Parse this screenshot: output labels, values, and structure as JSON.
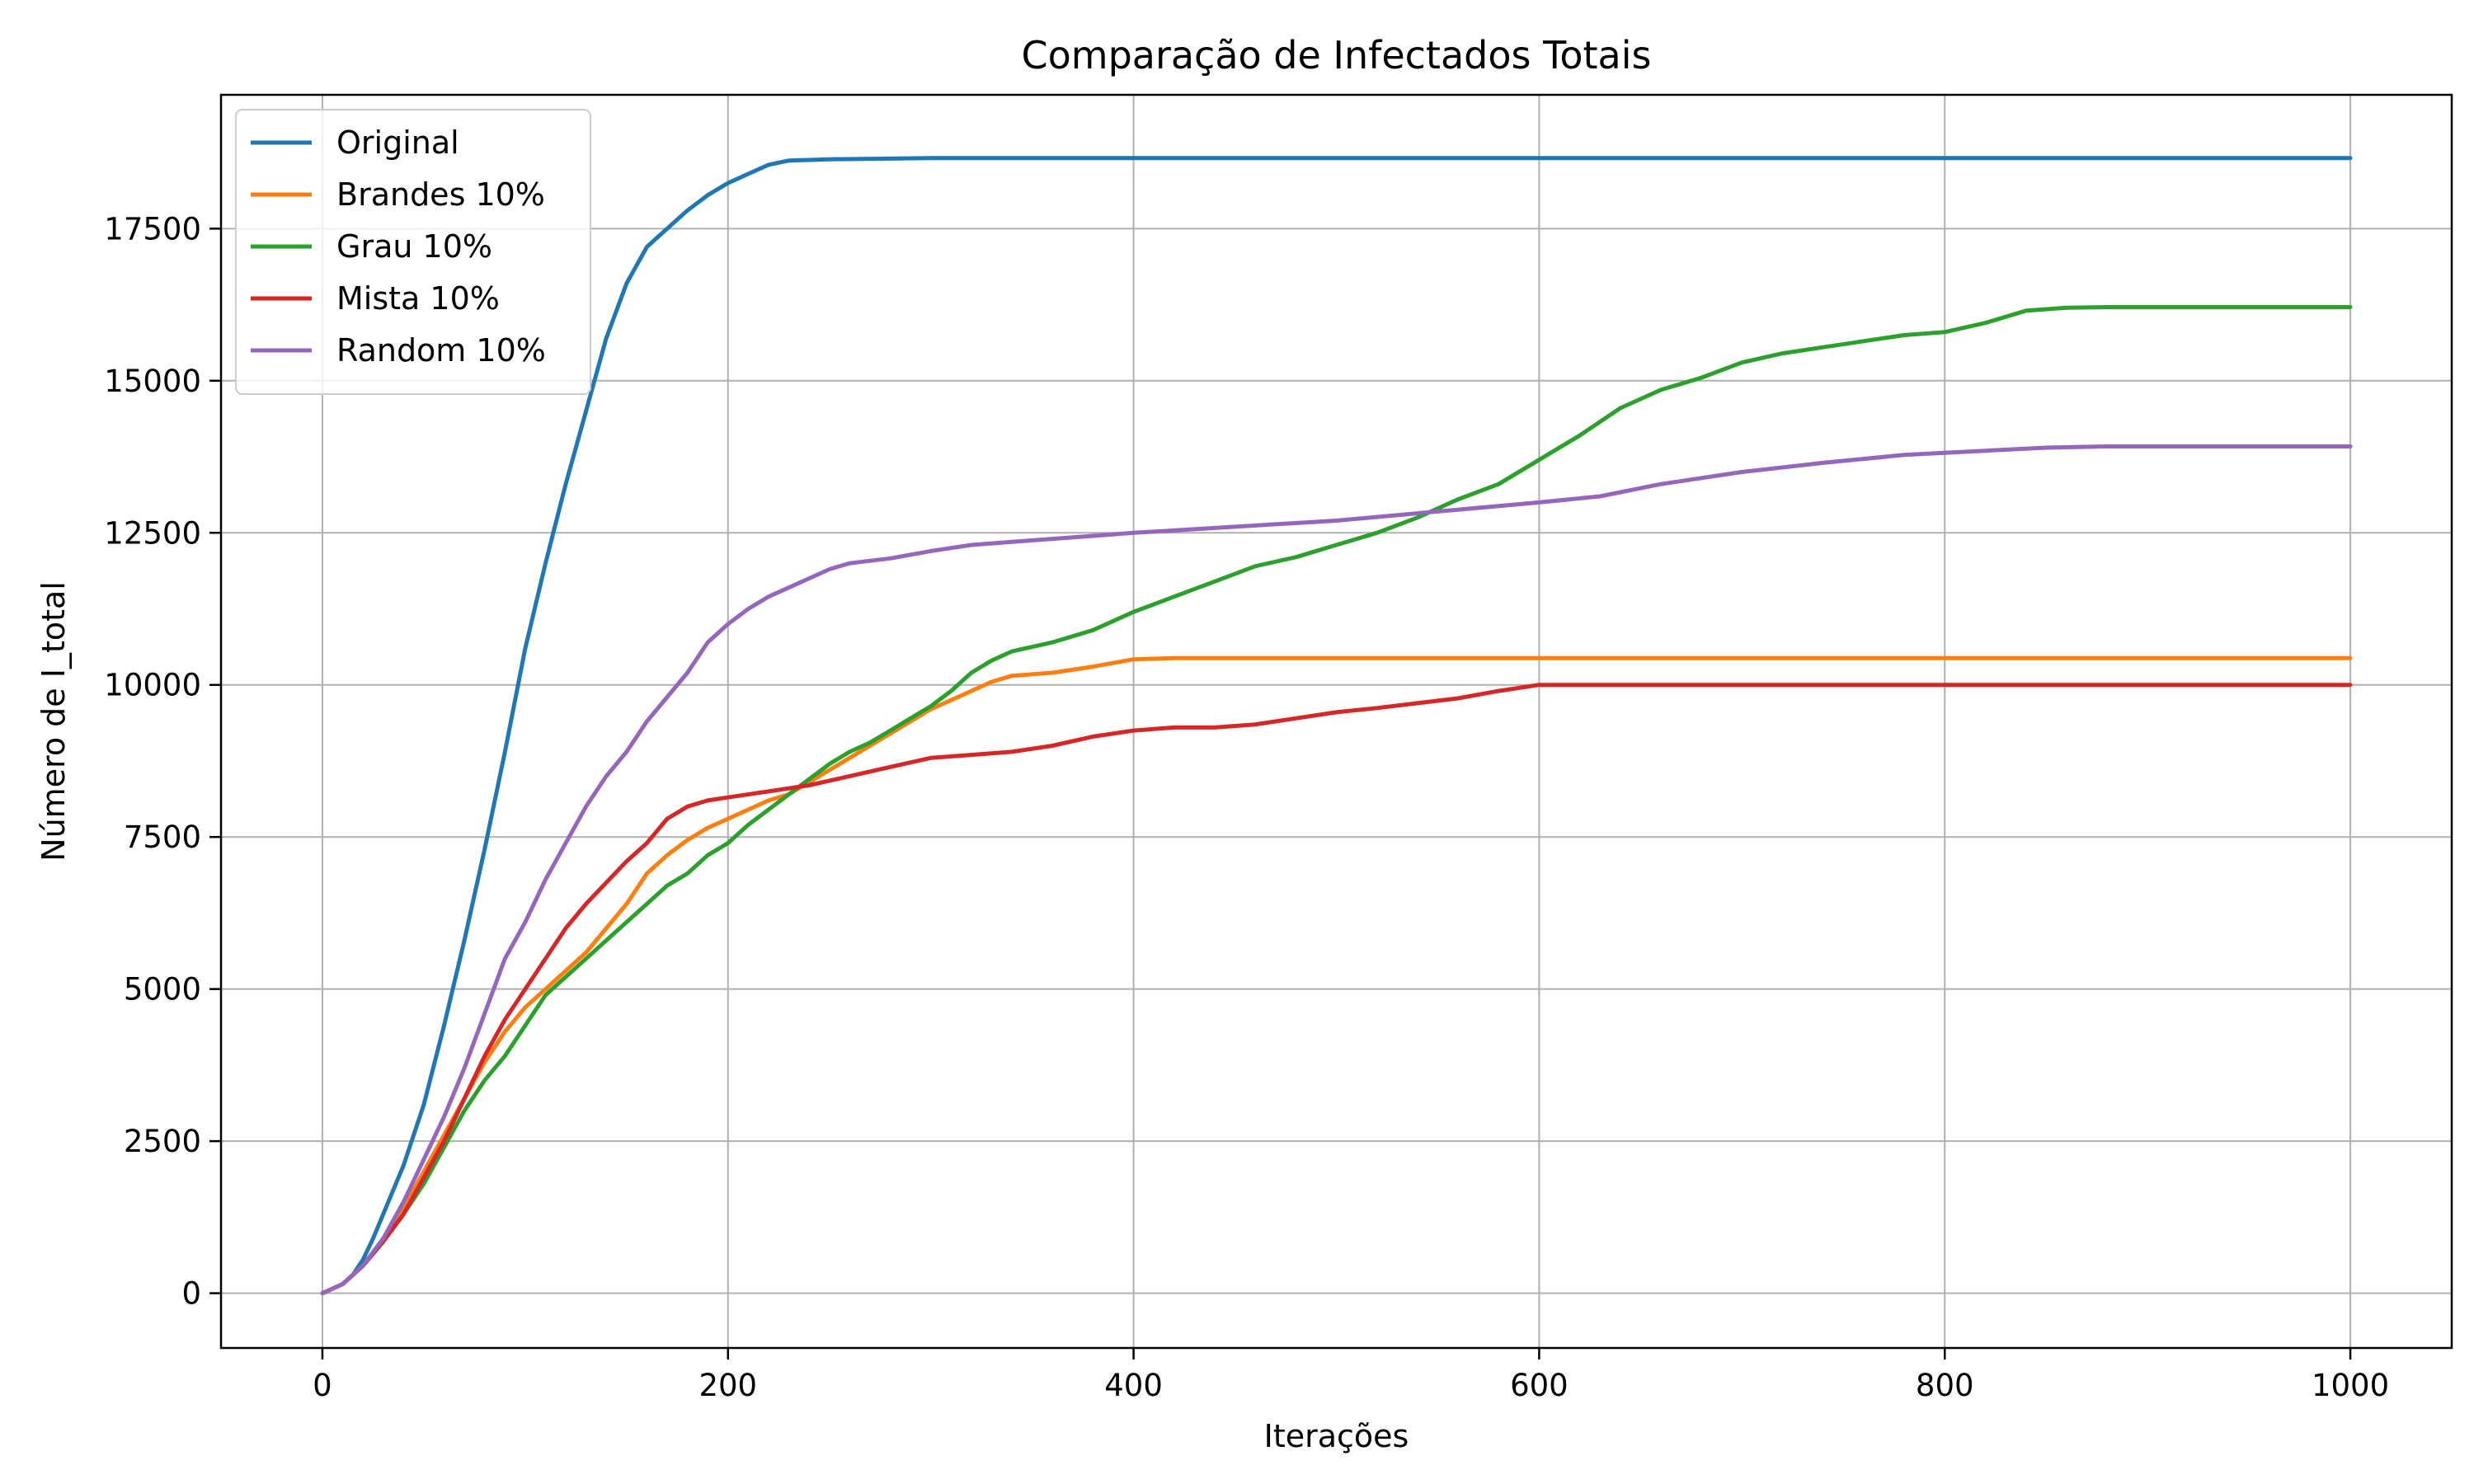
{
  "chart_data": {
    "type": "line",
    "title": "Comparação de Infectados Totais",
    "xlabel": "Iterações",
    "ylabel": "Número de I_total",
    "xlim": [
      -50,
      1050
    ],
    "ylim": [
      -900,
      19700
    ],
    "xticks": [
      0,
      200,
      400,
      600,
      800,
      1000
    ],
    "yticks": [
      0,
      2500,
      5000,
      7500,
      10000,
      12500,
      15000,
      17500
    ],
    "grid": true,
    "legend_position": "top-left",
    "series": [
      {
        "name": "Original",
        "color": "#1f77b4",
        "points": [
          [
            0,
            0
          ],
          [
            10,
            150
          ],
          [
            15,
            300
          ],
          [
            20,
            550
          ],
          [
            25,
            900
          ],
          [
            30,
            1300
          ],
          [
            40,
            2100
          ],
          [
            50,
            3100
          ],
          [
            60,
            4400
          ],
          [
            70,
            5800
          ],
          [
            80,
            7300
          ],
          [
            90,
            8900
          ],
          [
            100,
            10600
          ],
          [
            110,
            12000
          ],
          [
            120,
            13300
          ],
          [
            130,
            14500
          ],
          [
            140,
            15700
          ],
          [
            150,
            16600
          ],
          [
            160,
            17200
          ],
          [
            170,
            17500
          ],
          [
            180,
            17800
          ],
          [
            190,
            18050
          ],
          [
            200,
            18250
          ],
          [
            210,
            18400
          ],
          [
            220,
            18550
          ],
          [
            230,
            18620
          ],
          [
            250,
            18640
          ],
          [
            300,
            18660
          ],
          [
            1000,
            18660
          ]
        ]
      },
      {
        "name": "Brandes 10%",
        "color": "#ff7f0e",
        "points": [
          [
            0,
            0
          ],
          [
            10,
            150
          ],
          [
            20,
            450
          ],
          [
            30,
            900
          ],
          [
            40,
            1400
          ],
          [
            50,
            2000
          ],
          [
            60,
            2600
          ],
          [
            70,
            3200
          ],
          [
            80,
            3800
          ],
          [
            90,
            4300
          ],
          [
            100,
            4700
          ],
          [
            110,
            5000
          ],
          [
            120,
            5300
          ],
          [
            130,
            5600
          ],
          [
            140,
            6000
          ],
          [
            150,
            6400
          ],
          [
            160,
            6900
          ],
          [
            170,
            7200
          ],
          [
            180,
            7450
          ],
          [
            190,
            7650
          ],
          [
            200,
            7800
          ],
          [
            210,
            7950
          ],
          [
            220,
            8100
          ],
          [
            230,
            8200
          ],
          [
            240,
            8400
          ],
          [
            250,
            8600
          ],
          [
            260,
            8800
          ],
          [
            270,
            9000
          ],
          [
            280,
            9200
          ],
          [
            290,
            9400
          ],
          [
            300,
            9600
          ],
          [
            310,
            9750
          ],
          [
            320,
            9900
          ],
          [
            330,
            10050
          ],
          [
            340,
            10150
          ],
          [
            360,
            10200
          ],
          [
            380,
            10300
          ],
          [
            400,
            10420
          ],
          [
            420,
            10440
          ],
          [
            1000,
            10440
          ]
        ]
      },
      {
        "name": "Grau 10%",
        "color": "#2ca02c",
        "points": [
          [
            0,
            0
          ],
          [
            10,
            150
          ],
          [
            20,
            450
          ],
          [
            30,
            850
          ],
          [
            40,
            1300
          ],
          [
            50,
            1800
          ],
          [
            60,
            2400
          ],
          [
            70,
            3000
          ],
          [
            80,
            3500
          ],
          [
            90,
            3900
          ],
          [
            100,
            4400
          ],
          [
            110,
            4900
          ],
          [
            120,
            5200
          ],
          [
            130,
            5500
          ],
          [
            140,
            5800
          ],
          [
            150,
            6100
          ],
          [
            160,
            6400
          ],
          [
            170,
            6700
          ],
          [
            180,
            6900
          ],
          [
            190,
            7200
          ],
          [
            200,
            7400
          ],
          [
            210,
            7700
          ],
          [
            220,
            7950
          ],
          [
            230,
            8200
          ],
          [
            240,
            8450
          ],
          [
            250,
            8700
          ],
          [
            260,
            8900
          ],
          [
            270,
            9050
          ],
          [
            280,
            9250
          ],
          [
            290,
            9450
          ],
          [
            300,
            9650
          ],
          [
            310,
            9900
          ],
          [
            320,
            10200
          ],
          [
            330,
            10400
          ],
          [
            340,
            10550
          ],
          [
            360,
            10700
          ],
          [
            380,
            10900
          ],
          [
            400,
            11200
          ],
          [
            420,
            11450
          ],
          [
            440,
            11700
          ],
          [
            460,
            11950
          ],
          [
            480,
            12100
          ],
          [
            500,
            12300
          ],
          [
            520,
            12500
          ],
          [
            540,
            12750
          ],
          [
            560,
            13050
          ],
          [
            580,
            13300
          ],
          [
            600,
            13700
          ],
          [
            620,
            14100
          ],
          [
            640,
            14550
          ],
          [
            660,
            14850
          ],
          [
            680,
            15050
          ],
          [
            700,
            15300
          ],
          [
            720,
            15450
          ],
          [
            740,
            15550
          ],
          [
            760,
            15650
          ],
          [
            780,
            15750
          ],
          [
            800,
            15800
          ],
          [
            820,
            15950
          ],
          [
            840,
            16150
          ],
          [
            860,
            16200
          ],
          [
            880,
            16210
          ],
          [
            1000,
            16210
          ]
        ]
      },
      {
        "name": "Mista 10%",
        "color": "#d62728",
        "points": [
          [
            0,
            0
          ],
          [
            10,
            150
          ],
          [
            20,
            450
          ],
          [
            30,
            850
          ],
          [
            40,
            1300
          ],
          [
            50,
            1900
          ],
          [
            60,
            2500
          ],
          [
            70,
            3200
          ],
          [
            80,
            3900
          ],
          [
            90,
            4500
          ],
          [
            100,
            5000
          ],
          [
            110,
            5500
          ],
          [
            120,
            6000
          ],
          [
            130,
            6400
          ],
          [
            140,
            6750
          ],
          [
            150,
            7100
          ],
          [
            160,
            7400
          ],
          [
            170,
            7800
          ],
          [
            180,
            8000
          ],
          [
            190,
            8100
          ],
          [
            200,
            8150
          ],
          [
            220,
            8250
          ],
          [
            240,
            8350
          ],
          [
            260,
            8500
          ],
          [
            280,
            8650
          ],
          [
            300,
            8800
          ],
          [
            320,
            8850
          ],
          [
            340,
            8900
          ],
          [
            360,
            9000
          ],
          [
            380,
            9150
          ],
          [
            400,
            9250
          ],
          [
            420,
            9300
          ],
          [
            440,
            9300
          ],
          [
            460,
            9350
          ],
          [
            480,
            9450
          ],
          [
            500,
            9550
          ],
          [
            520,
            9620
          ],
          [
            540,
            9700
          ],
          [
            560,
            9780
          ],
          [
            580,
            9900
          ],
          [
            600,
            10000
          ],
          [
            620,
            10000
          ],
          [
            1000,
            10000
          ]
        ]
      },
      {
        "name": "Random 10%",
        "color": "#9467bd",
        "points": [
          [
            0,
            0
          ],
          [
            10,
            150
          ],
          [
            20,
            450
          ],
          [
            30,
            900
          ],
          [
            40,
            1500
          ],
          [
            50,
            2200
          ],
          [
            60,
            2900
          ],
          [
            70,
            3700
          ],
          [
            80,
            4600
          ],
          [
            90,
            5500
          ],
          [
            100,
            6100
          ],
          [
            110,
            6800
          ],
          [
            120,
            7400
          ],
          [
            130,
            8000
          ],
          [
            140,
            8500
          ],
          [
            150,
            8900
          ],
          [
            160,
            9400
          ],
          [
            170,
            9800
          ],
          [
            180,
            10200
          ],
          [
            190,
            10700
          ],
          [
            200,
            11000
          ],
          [
            210,
            11250
          ],
          [
            220,
            11450
          ],
          [
            230,
            11600
          ],
          [
            240,
            11750
          ],
          [
            250,
            11900
          ],
          [
            260,
            12000
          ],
          [
            280,
            12080
          ],
          [
            300,
            12200
          ],
          [
            320,
            12300
          ],
          [
            340,
            12350
          ],
          [
            360,
            12400
          ],
          [
            380,
            12450
          ],
          [
            400,
            12500
          ],
          [
            450,
            12600
          ],
          [
            500,
            12700
          ],
          [
            550,
            12850
          ],
          [
            600,
            13000
          ],
          [
            630,
            13100
          ],
          [
            660,
            13300
          ],
          [
            700,
            13500
          ],
          [
            740,
            13650
          ],
          [
            780,
            13780
          ],
          [
            820,
            13850
          ],
          [
            850,
            13900
          ],
          [
            880,
            13920
          ],
          [
            1000,
            13920
          ]
        ]
      }
    ]
  }
}
